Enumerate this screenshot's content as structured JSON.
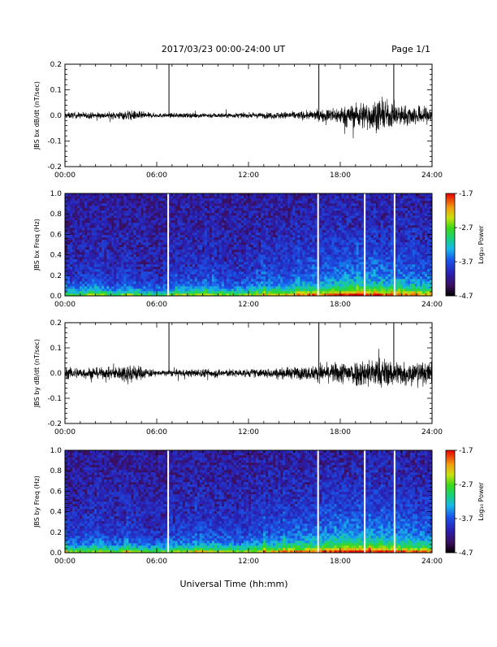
{
  "header": {
    "title": "2017/03/23  00:00-24:00 UT",
    "page": "Page 1/1"
  },
  "xlabel": "Universal Time (hh:mm)",
  "colors": {
    "trace": "#000000",
    "spectrogram_background": "#3a0f5e",
    "gap": "#ffffff"
  },
  "chart_data": [
    {
      "type": "line",
      "ylabel": "JBS bx dB/dt (nT/sec)",
      "xlim": [
        0,
        24
      ],
      "ylim": [
        -0.2,
        0.2
      ],
      "x_ticks": [
        "00:00",
        "06:00",
        "12:00",
        "18:00",
        "24:00"
      ],
      "y_ticks": [
        "-0.2",
        "-0.1",
        "0.0",
        "0.1",
        "0.2"
      ],
      "gap_markers_hours": [
        6.8,
        16.6,
        21.5
      ],
      "amplitude_envelope": {
        "hours": [
          0,
          3,
          4.2,
          6,
          9,
          12,
          14,
          16,
          17,
          19,
          20.5,
          22,
          24
        ],
        "half_width": [
          0.018,
          0.018,
          0.03,
          0.012,
          0.015,
          0.014,
          0.02,
          0.025,
          0.035,
          0.07,
          0.09,
          0.06,
          0.05
        ]
      }
    },
    {
      "type": "heatmap",
      "ylabel": "JBS bx Freq (Hz)",
      "xlim": [
        0,
        24
      ],
      "ylim": [
        0,
        1.0
      ],
      "x_ticks": [
        "00:00",
        "06:00",
        "12:00",
        "18:00",
        "24:00"
      ],
      "y_ticks": [
        "0.0",
        "0.2",
        "0.4",
        "0.6",
        "0.8",
        "1.0"
      ],
      "gap_lines_hours": [
        6.75,
        16.55,
        19.6,
        21.55
      ],
      "colorbar": {
        "label": "Log₁₀ Power",
        "ticks": [
          "-1.7",
          "-2.7",
          "-3.7",
          "-4.7"
        ],
        "range": [
          -4.7,
          -1.7
        ]
      }
    },
    {
      "type": "line",
      "ylabel": "JBS by dB/dt (nT/sec)",
      "xlim": [
        0,
        24
      ],
      "ylim": [
        -0.2,
        0.2
      ],
      "x_ticks": [
        "00:00",
        "06:00",
        "12:00",
        "18:00",
        "24:00"
      ],
      "y_ticks": [
        "-0.2",
        "-0.1",
        "0.0",
        "0.1",
        "0.2"
      ],
      "gap_markers_hours": [
        6.8,
        16.6,
        21.5
      ],
      "amplitude_envelope": {
        "hours": [
          0,
          3,
          4.2,
          6,
          9,
          12,
          14,
          16,
          17,
          19,
          20.5,
          22,
          24
        ],
        "half_width": [
          0.035,
          0.03,
          0.06,
          0.015,
          0.025,
          0.022,
          0.03,
          0.04,
          0.05,
          0.08,
          0.09,
          0.07,
          0.06
        ]
      }
    },
    {
      "type": "heatmap",
      "ylabel": "JBS by Freq (Hz)",
      "xlim": [
        0,
        24
      ],
      "ylim": [
        0,
        1.0
      ],
      "x_ticks": [
        "00:00",
        "06:00",
        "12:00",
        "18:00",
        "24:00"
      ],
      "y_ticks": [
        "0.0",
        "0.2",
        "0.4",
        "0.6",
        "0.8",
        "1.0"
      ],
      "gap_lines_hours": [
        6.75,
        16.55,
        19.6,
        21.55
      ],
      "colorbar": {
        "label": "Log₁₀ Power",
        "ticks": [
          "-1.7",
          "-2.7",
          "-3.7",
          "-4.7"
        ],
        "range": [
          -4.7,
          -1.7
        ]
      }
    }
  ]
}
